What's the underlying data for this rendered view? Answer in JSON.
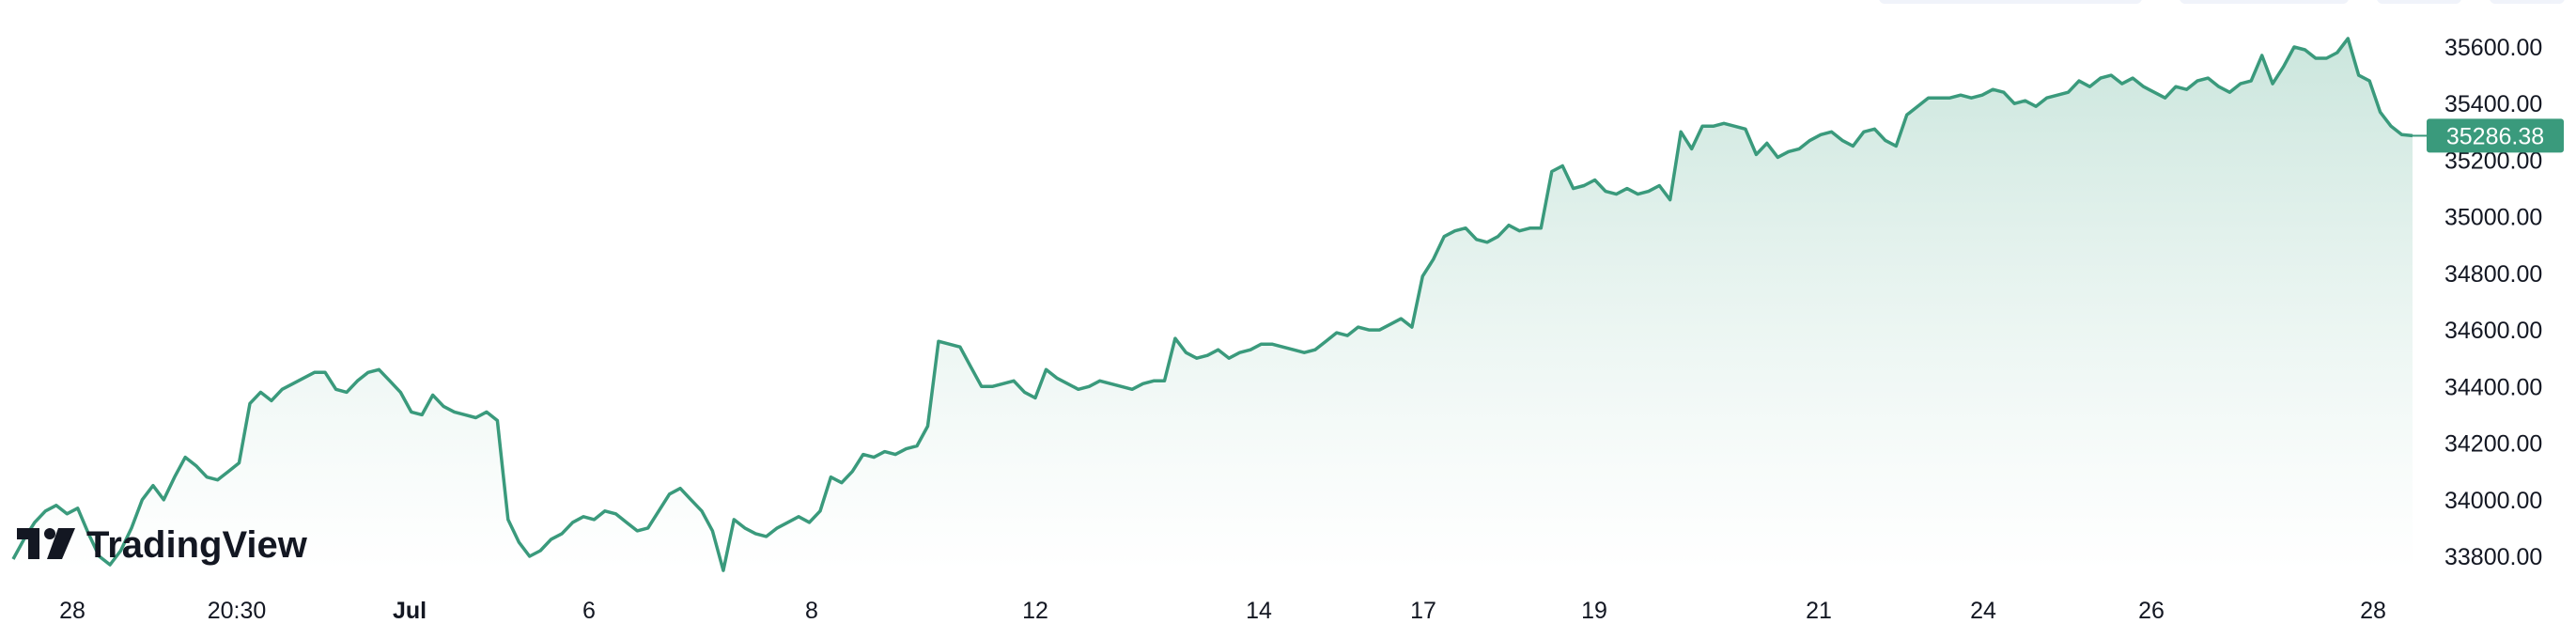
{
  "colors": {
    "line": "#3a9a7c",
    "area_top": "#c5e3d9",
    "area_bottom": "#ffffff",
    "price_label_bg": "#3a9a7c",
    "text": "#131722"
  },
  "logo": {
    "text": "TradingView"
  },
  "chart_data": {
    "type": "area",
    "x_tick_labels": [
      "28",
      "20:30",
      "Jul",
      "6",
      "8",
      "12",
      "14",
      "17",
      "19",
      "21",
      "24",
      "26",
      "28"
    ],
    "y_tick_labels": [
      "35600.00",
      "35400.00",
      "35200.00",
      "35000.00",
      "34800.00",
      "34600.00",
      "34400.00",
      "34200.00",
      "34000.00",
      "33800.00"
    ],
    "ylim": [
      33740,
      35700
    ],
    "last_price": 35286.38,
    "last_price_label": "35286.38",
    "values": [
      33790,
      33860,
      33920,
      33960,
      33980,
      33950,
      33970,
      33880,
      33800,
      33770,
      33820,
      33900,
      34000,
      34050,
      34000,
      34080,
      34150,
      34120,
      34080,
      34070,
      34100,
      34130,
      34340,
      34380,
      34350,
      34390,
      34410,
      34430,
      34450,
      34450,
      34390,
      34380,
      34420,
      34450,
      34460,
      34420,
      34380,
      34310,
      34300,
      34370,
      34330,
      34310,
      34300,
      34290,
      34310,
      34280,
      33930,
      33850,
      33800,
      33820,
      33860,
      33880,
      33920,
      33940,
      33930,
      33960,
      33950,
      33920,
      33890,
      33900,
      33960,
      34020,
      34040,
      34000,
      33960,
      33890,
      33750,
      33930,
      33900,
      33880,
      33870,
      33900,
      33920,
      33940,
      33920,
      33960,
      34080,
      34060,
      34100,
      34160,
      34150,
      34170,
      34160,
      34180,
      34190,
      34260,
      34560,
      34550,
      34540,
      34470,
      34400,
      34400,
      34410,
      34420,
      34380,
      34360,
      34460,
      34430,
      34410,
      34390,
      34400,
      34420,
      34410,
      34400,
      34390,
      34410,
      34420,
      34420,
      34570,
      34520,
      34500,
      34510,
      34530,
      34500,
      34520,
      34530,
      34550,
      34550,
      34540,
      34530,
      34520,
      34530,
      34560,
      34590,
      34580,
      34610,
      34600,
      34600,
      34620,
      34640,
      34610,
      34790,
      34850,
      34930,
      34950,
      34960,
      34920,
      34910,
      34930,
      34970,
      34950,
      34960,
      34960,
      35160,
      35180,
      35100,
      35110,
      35130,
      35090,
      35080,
      35100,
      35080,
      35090,
      35110,
      35060,
      35300,
      35240,
      35320,
      35320,
      35330,
      35320,
      35310,
      35220,
      35260,
      35210,
      35230,
      35240,
      35270,
      35290,
      35300,
      35270,
      35250,
      35300,
      35310,
      35270,
      35250,
      35360,
      35390,
      35420,
      35420,
      35420,
      35430,
      35420,
      35430,
      35450,
      35440,
      35400,
      35410,
      35390,
      35420,
      35430,
      35440,
      35480,
      35460,
      35490,
      35500,
      35470,
      35490,
      35460,
      35440,
      35420,
      35460,
      35450,
      35480,
      35490,
      35460,
      35440,
      35470,
      35480,
      35570,
      35470,
      35530,
      35600,
      35590,
      35560,
      35560,
      35580,
      35630,
      35500,
      35480,
      35370,
      35320,
      35290,
      35286.38
    ]
  }
}
